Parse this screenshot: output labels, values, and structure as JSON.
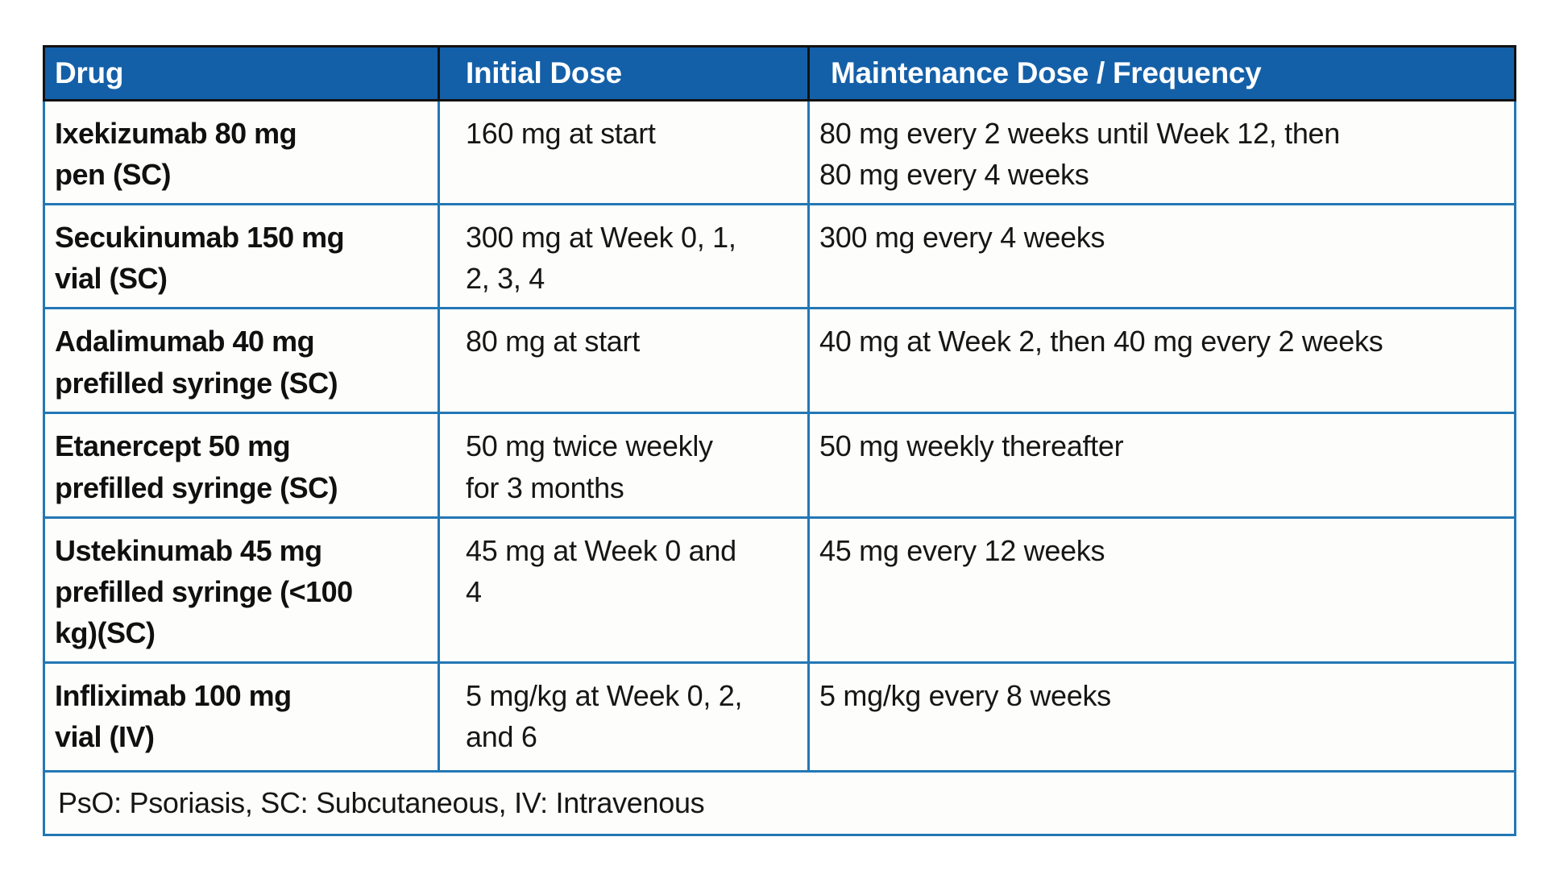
{
  "table": {
    "columns": [
      {
        "key": "drug",
        "label": "Drug"
      },
      {
        "key": "initial",
        "label": "Initial Dose"
      },
      {
        "key": "maintenance",
        "label": "Maintenance Dose / Frequency"
      }
    ],
    "rows": [
      {
        "drug": "Ixekizumab 80 mg\npen (SC)",
        "initial": "160 mg at start",
        "maintenance": "80 mg every 2 weeks until Week 12, then\n80 mg every 4 weeks"
      },
      {
        "drug": "Secukinumab 150 mg\nvial (SC)",
        "initial": "300 mg at Week 0, 1,\n2, 3, 4",
        "maintenance": "300 mg every 4 weeks"
      },
      {
        "drug": "Adalimumab 40 mg\nprefilled syringe (SC)",
        "initial": "80 mg at start",
        "maintenance": "40 mg at Week 2, then 40 mg every 2 weeks"
      },
      {
        "drug": "Etanercept 50 mg\nprefilled syringe (SC)",
        "initial": "50 mg twice weekly\nfor 3 months",
        "maintenance": "50 mg weekly thereafter"
      },
      {
        "drug": "Ustekinumab 45 mg\nprefilled syringe (<100\nkg)(SC)",
        "initial": "45 mg at Week 0 and\n4",
        "maintenance": "45 mg every 12 weeks"
      },
      {
        "drug": "Infliximab 100 mg\nvial (IV)",
        "initial": "5 mg/kg at Week 0, 2,\nand 6",
        "maintenance": "5 mg/kg every 8 weeks"
      }
    ],
    "footnote": "PsO: Psoriasis, SC: Subcutaneous, IV: Intravenous"
  },
  "colors": {
    "header_bg": "#1460a8",
    "header_text": "#ffffff",
    "header_border": "#121212",
    "grid": "#2377b5",
    "cell_bg": "#fdfdfb",
    "text": "#161616"
  }
}
